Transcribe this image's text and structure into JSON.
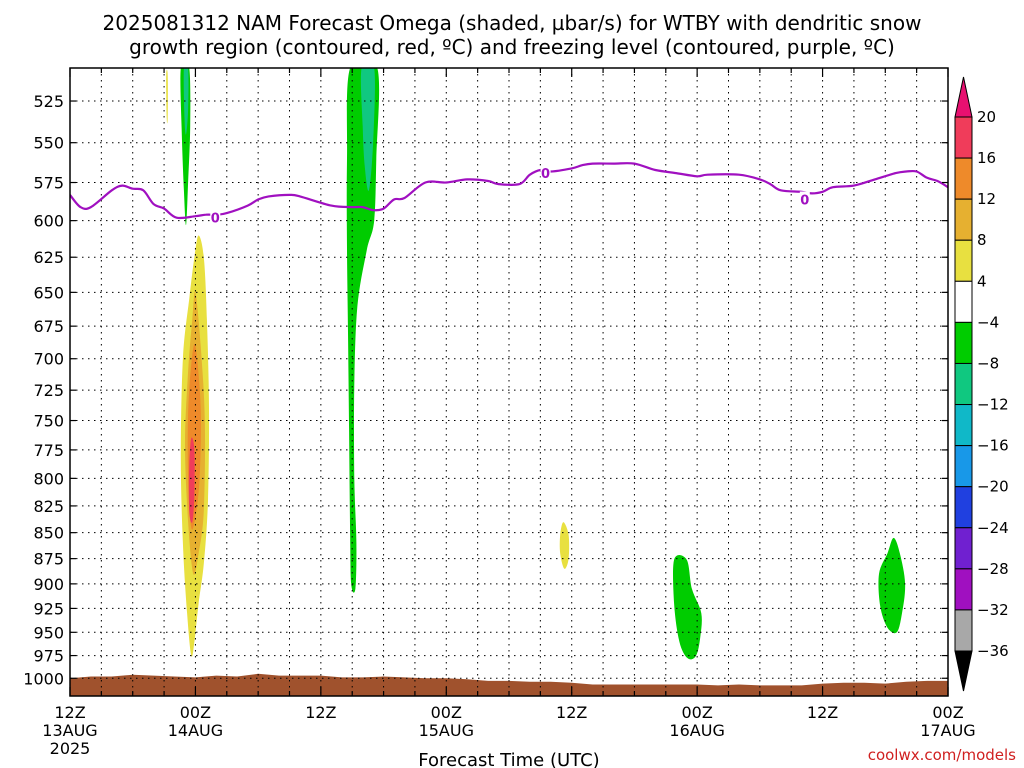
{
  "title_line1": "2025081312 NAM Forecast Omega (shaded, µbar/s) for WTBY with dendritic snow",
  "title_line2": "growth region (contoured, red, ºC) and freezing level (contoured, purple, ºC)",
  "credit": "coolwx.com/models",
  "chart_data": {
    "type": "heatmap",
    "xlabel": "Forecast Time (UTC)",
    "x_unit": "hours since 2025-08-13 12Z",
    "x_range": [
      0,
      84
    ],
    "x_ticks": [
      {
        "h": 0,
        "top": "12Z",
        "bottom": "13AUG",
        "year": "2025"
      },
      {
        "h": 12,
        "top": "00Z",
        "bottom": "14AUG"
      },
      {
        "h": 24,
        "top": "12Z",
        "bottom": ""
      },
      {
        "h": 36,
        "top": "00Z",
        "bottom": "15AUG"
      },
      {
        "h": 48,
        "top": "12Z",
        "bottom": ""
      },
      {
        "h": 60,
        "top": "00Z",
        "bottom": "16AUG"
      },
      {
        "h": 72,
        "top": "12Z",
        "bottom": ""
      },
      {
        "h": 84,
        "top": "00Z",
        "bottom": "17AUG"
      }
    ],
    "y_axis": "pressure (hPa), log scale, inverted",
    "y_range": [
      1020,
      506
    ],
    "y_ticks": [
      525,
      550,
      575,
      600,
      625,
      650,
      675,
      700,
      725,
      750,
      775,
      800,
      825,
      850,
      875,
      900,
      925,
      950,
      975,
      1000
    ],
    "grid": true,
    "colorbar": {
      "labels": [
        "20",
        "16",
        "12",
        "8",
        "4",
        "−4",
        "−8",
        "−12",
        "−16",
        "−20",
        "−24",
        "−28",
        "−32",
        "−36"
      ],
      "colors": [
        "#f03c5a",
        "#ee8a2a",
        "#e6b030",
        "#e8e040",
        "#ffffff",
        "#00cc00",
        "#10c880",
        "#10b8c8",
        "#1898e8",
        "#2040e0",
        "#7020d0",
        "#a010c0",
        "#a8a8a8"
      ],
      "top_arrow_color": "#e81070",
      "bottom_arrow_color": "#000000"
    },
    "omega_regions": [
      {
        "name": "upward-motion-strip-1",
        "color": "#00cc00",
        "points": [
          [
            10.6,
            506
          ],
          [
            11.4,
            506
          ],
          [
            11.5,
            540
          ],
          [
            11.3,
            575
          ],
          [
            11.1,
            603
          ],
          [
            10.9,
            580
          ],
          [
            10.7,
            545
          ]
        ]
      },
      {
        "name": "upward-motion-strip-1-core",
        "color": "#10c880",
        "points": [
          [
            10.9,
            506
          ],
          [
            11.3,
            506
          ],
          [
            11.3,
            530
          ],
          [
            11.1,
            545
          ],
          [
            10.95,
            535
          ]
        ]
      },
      {
        "name": "positive-omega-plume",
        "color": "#e8e040",
        "points": [
          [
            12.3,
            610
          ],
          [
            12.8,
            625
          ],
          [
            13.1,
            670
          ],
          [
            13.3,
            740
          ],
          [
            13.2,
            820
          ],
          [
            12.8,
            880
          ],
          [
            12.3,
            920
          ],
          [
            11.9,
            960
          ],
          [
            11.6,
            975
          ],
          [
            11.2,
            930
          ],
          [
            10.8,
            860
          ],
          [
            10.6,
            780
          ],
          [
            10.8,
            700
          ],
          [
            11.4,
            655
          ],
          [
            11.9,
            625
          ]
        ]
      },
      {
        "name": "positive-omega-plume-8",
        "color": "#e6b030",
        "points": [
          [
            12.0,
            650
          ],
          [
            12.5,
            690
          ],
          [
            12.9,
            750
          ],
          [
            12.8,
            830
          ],
          [
            12.3,
            870
          ],
          [
            11.8,
            890
          ],
          [
            11.3,
            840
          ],
          [
            11.0,
            770
          ],
          [
            11.3,
            710
          ],
          [
            11.7,
            670
          ]
        ]
      },
      {
        "name": "positive-omega-plume-12",
        "color": "#ee8a2a",
        "points": [
          [
            12.0,
            690
          ],
          [
            12.5,
            740
          ],
          [
            12.4,
            800
          ],
          [
            12.0,
            835
          ],
          [
            11.6,
            845
          ],
          [
            11.3,
            800
          ],
          [
            11.3,
            745
          ],
          [
            11.6,
            705
          ]
        ]
      },
      {
        "name": "positive-omega-plume-16",
        "color": "#f03c5a",
        "points": [
          [
            11.6,
            765
          ],
          [
            11.9,
            775
          ],
          [
            11.9,
            815
          ],
          [
            11.7,
            840
          ],
          [
            11.4,
            830
          ],
          [
            11.4,
            790
          ]
        ]
      },
      {
        "name": "small-yellow-spike",
        "color": "#e8e040",
        "points": [
          [
            9.2,
            510
          ],
          [
            9.35,
            510
          ],
          [
            9.35,
            535
          ],
          [
            9.25,
            535
          ]
        ]
      },
      {
        "name": "upward-motion-strip-2",
        "color": "#00cc00",
        "points": [
          [
            26.8,
            506
          ],
          [
            29.4,
            506
          ],
          [
            29.3,
            560
          ],
          [
            29.1,
            600
          ],
          [
            28.4,
            620
          ],
          [
            27.5,
            660
          ],
          [
            27.2,
            720
          ],
          [
            27.2,
            800
          ],
          [
            27.4,
            860
          ],
          [
            27.3,
            905
          ],
          [
            26.9,
            900
          ],
          [
            26.8,
            850
          ],
          [
            26.7,
            760
          ],
          [
            26.6,
            680
          ],
          [
            26.5,
            620
          ],
          [
            26.5,
            560
          ]
        ]
      },
      {
        "name": "upward-motion-strip-2-core",
        "color": "#10c880",
        "points": [
          [
            27.9,
            506
          ],
          [
            29.1,
            506
          ],
          [
            29.0,
            550
          ],
          [
            28.6,
            580
          ],
          [
            28.2,
            565
          ],
          [
            28.0,
            540
          ]
        ]
      },
      {
        "name": "small-positive-blob",
        "color": "#e8e040",
        "points": [
          [
            47.2,
            840
          ],
          [
            47.7,
            852
          ],
          [
            47.7,
            875
          ],
          [
            47.3,
            885
          ],
          [
            46.9,
            870
          ],
          [
            46.9,
            852
          ]
        ]
      },
      {
        "name": "upward-motion-blob-3",
        "color": "#00cc00",
        "points": [
          [
            57.8,
            876
          ],
          [
            59.0,
            876
          ],
          [
            59.5,
            905
          ],
          [
            60.4,
            930
          ],
          [
            60.3,
            955
          ],
          [
            59.9,
            975
          ],
          [
            59.1,
            978
          ],
          [
            58.3,
            960
          ],
          [
            57.8,
            920
          ]
        ]
      },
      {
        "name": "upward-motion-blob-4",
        "color": "#00cc00",
        "points": [
          [
            78.8,
            855
          ],
          [
            79.4,
            870
          ],
          [
            79.9,
            900
          ],
          [
            79.6,
            930
          ],
          [
            79.1,
            950
          ],
          [
            78.2,
            945
          ],
          [
            77.5,
            922
          ],
          [
            77.4,
            890
          ],
          [
            78.2,
            870
          ]
        ]
      }
    ],
    "freezing_level": {
      "color": "#a010c0",
      "label": "0",
      "label_positions": [
        [
          13.9,
          598
        ],
        [
          45.5,
          569
        ],
        [
          70.3,
          586
        ]
      ],
      "points": [
        [
          0,
          583
        ],
        [
          1,
          591
        ],
        [
          2,
          591
        ],
        [
          4,
          580
        ],
        [
          5,
          577
        ],
        [
          6,
          579
        ],
        [
          7,
          580
        ],
        [
          8,
          589
        ],
        [
          9,
          592
        ],
        [
          10.2,
          598
        ],
        [
          12,
          597
        ],
        [
          13,
          596
        ],
        [
          14,
          596
        ],
        [
          15,
          595
        ],
        [
          17,
          590
        ],
        [
          18,
          586
        ],
        [
          19,
          584
        ],
        [
          21,
          583
        ],
        [
          22,
          584
        ],
        [
          25,
          590
        ],
        [
          27,
          591
        ],
        [
          28,
          591
        ],
        [
          29,
          593
        ],
        [
          30,
          592
        ],
        [
          31,
          586
        ],
        [
          32,
          585
        ],
        [
          34,
          575
        ],
        [
          36,
          575
        ],
        [
          38,
          573
        ],
        [
          40,
          574
        ],
        [
          41,
          576
        ],
        [
          43,
          576
        ],
        [
          44,
          570
        ],
        [
          45,
          567
        ],
        [
          46,
          568
        ],
        [
          48,
          566
        ],
        [
          49,
          564
        ],
        [
          50,
          563
        ],
        [
          52,
          563
        ],
        [
          54,
          563
        ],
        [
          56,
          567
        ],
        [
          58,
          569
        ],
        [
          60,
          571
        ],
        [
          61,
          570
        ],
        [
          64,
          570
        ],
        [
          66,
          573
        ],
        [
          67,
          576
        ],
        [
          68,
          580
        ],
        [
          70,
          581
        ],
        [
          71,
          582
        ],
        [
          72,
          581
        ],
        [
          73,
          578
        ],
        [
          75,
          577
        ],
        [
          77,
          573
        ],
        [
          79,
          569
        ],
        [
          80,
          568
        ],
        [
          81,
          568
        ],
        [
          82,
          572
        ],
        [
          83,
          574
        ],
        [
          84,
          578
        ]
      ]
    },
    "surface": {
      "color": "#a0522d",
      "bottom": 1020,
      "top_points": [
        [
          0,
          1000
        ],
        [
          2,
          998
        ],
        [
          4,
          998
        ],
        [
          6,
          996
        ],
        [
          8,
          997
        ],
        [
          10,
          998
        ],
        [
          12,
          999
        ],
        [
          14,
          997
        ],
        [
          16,
          998
        ],
        [
          18,
          995
        ],
        [
          20,
          997
        ],
        [
          22,
          997
        ],
        [
          24,
          997
        ],
        [
          26,
          999
        ],
        [
          28,
          999
        ],
        [
          30,
          998
        ],
        [
          32,
          999
        ],
        [
          34,
          1000
        ],
        [
          36,
          1000
        ],
        [
          38,
          1001
        ],
        [
          40,
          1003
        ],
        [
          42,
          1003
        ],
        [
          44,
          1004
        ],
        [
          46,
          1004
        ],
        [
          48,
          1005
        ],
        [
          50,
          1007
        ],
        [
          52,
          1007
        ],
        [
          54,
          1007
        ],
        [
          56,
          1007
        ],
        [
          58,
          1007
        ],
        [
          60,
          1007
        ],
        [
          62,
          1008
        ],
        [
          64,
          1007
        ],
        [
          66,
          1008
        ],
        [
          68,
          1008
        ],
        [
          70,
          1008
        ],
        [
          72,
          1006
        ],
        [
          74,
          1005
        ],
        [
          76,
          1005
        ],
        [
          78,
          1006
        ],
        [
          80,
          1004
        ],
        [
          82,
          1003
        ],
        [
          84,
          1003
        ]
      ]
    }
  }
}
